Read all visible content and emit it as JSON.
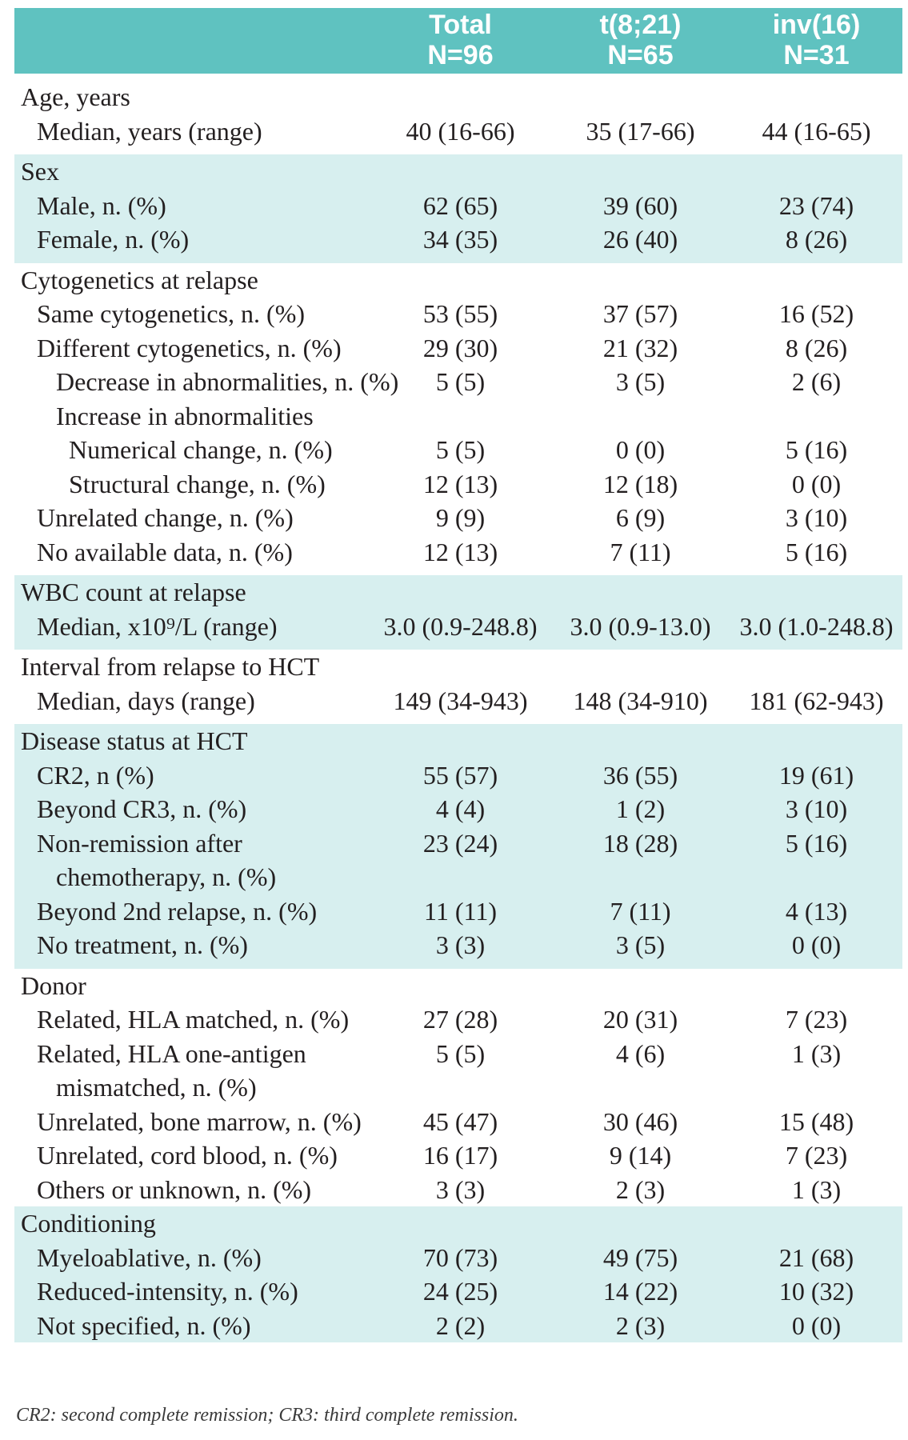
{
  "header": {
    "columns": [
      {
        "line1": "Total",
        "line2": "N=96"
      },
      {
        "line1": "t(8;21)",
        "line2": "N=65"
      },
      {
        "line1": "inv(16)",
        "line2": "N=31"
      }
    ]
  },
  "sections": [
    {
      "title": "Age, years",
      "rows": [
        {
          "label": "Median, years (range)",
          "total": "40  (16-66)",
          "t821": "35 (17-66)",
          "inv16": "44  (16-65)"
        }
      ]
    },
    {
      "title": "Sex",
      "rows": [
        {
          "label": "Male, n. (%)",
          "total": "62 (65)",
          "t821": "39 (60)",
          "inv16": "23 (74)"
        },
        {
          "label": "Female, n. (%)",
          "total": "34 (35)",
          "t821": "26 (40)",
          "inv16": "8 (26)"
        }
      ]
    },
    {
      "title": "Cytogenetics at relapse",
      "rows": [
        {
          "label": "Same cytogenetics, n. (%)",
          "total": "53 (55)",
          "t821": "37 (57)",
          "inv16": "16 (52)"
        },
        {
          "label": "Different cytogenetics, n. (%)",
          "total": "29 (30)",
          "t821": "21 (32)",
          "inv16": "8 (26)"
        },
        {
          "label": "Decrease in abnormalities, n. (%)",
          "total": "5 (5)",
          "t821": "3 (5)",
          "inv16": "2 (6)"
        },
        {
          "label": "Increase in abnormalities",
          "total": "",
          "t821": "",
          "inv16": ""
        },
        {
          "label": "Numerical change, n. (%)",
          "total": "5 (5)",
          "t821": "0 (0)",
          "inv16": "5 (16)"
        },
        {
          "label": "Structural change, n. (%)",
          "total": "12 (13)",
          "t821": "12 (18)",
          "inv16": "0 (0)"
        },
        {
          "label": "Unrelated change, n. (%)",
          "total": "9 (9)",
          "t821": "6 (9)",
          "inv16": "3 (10)"
        },
        {
          "label": "No available data, n. (%)",
          "total": "12 (13)",
          "t821": "7 (11)",
          "inv16": "5 (16)"
        }
      ]
    },
    {
      "title": "WBC count at relapse",
      "rows": [
        {
          "label": "Median, x10⁹/L (range)",
          "total": "3.0  (0.9-248.8)",
          "t821": "3.0  (0.9-13.0)",
          "inv16": "3.0 (1.0-248.8)"
        }
      ]
    },
    {
      "title": "Interval from relapse to HCT",
      "rows": [
        {
          "label": "Median, days (range)",
          "total": "149  (34-943)",
          "t821": "148  (34-910)",
          "inv16": "181  (62-943)"
        }
      ]
    },
    {
      "title": "Disease status at HCT",
      "rows": [
        {
          "label": "CR2, n (%)",
          "total": "55 (57)",
          "t821": "36 (55)",
          "inv16": "19 (61)"
        },
        {
          "label": "Beyond CR3, n. (%)",
          "total": "4 (4)",
          "t821": "1 (2)",
          "inv16": "3 (10)"
        },
        {
          "label": "Non-remission after",
          "total": "23 (24)",
          "t821": "18 (28)",
          "inv16": "5 (16)"
        },
        {
          "label": "chemotherapy, n. (%)",
          "total": "",
          "t821": "",
          "inv16": ""
        },
        {
          "label": "Beyond 2nd relapse, n. (%)",
          "total": "11 (11)",
          "t821": "7 (11)",
          "inv16": "4 (13)"
        },
        {
          "label": "No treatment, n. (%)",
          "total": "3 (3)",
          "t821": "3 (5)",
          "inv16": "0 (0)"
        }
      ]
    },
    {
      "title": "Donor",
      "rows": [
        {
          "label": "Related, HLA matched, n. (%)",
          "total": "27 (28)",
          "t821": "20 (31)",
          "inv16": "7 (23)"
        },
        {
          "label": "Related, HLA one-antigen",
          "total": "5 (5)",
          "t821": "4 (6)",
          "inv16": "1 (3)"
        },
        {
          "label": "mismatched, n. (%)",
          "total": "",
          "t821": "",
          "inv16": ""
        },
        {
          "label": "Unrelated, bone marrow, n. (%)",
          "total": "45 (47)",
          "t821": "30 (46)",
          "inv16": "15 (48)"
        },
        {
          "label": "Unrelated, cord blood, n. (%)",
          "total": "16 (17)",
          "t821": "9 (14)",
          "inv16": "7 (23)"
        },
        {
          "label": "Others or unknown, n. (%)",
          "total": "3 (3)",
          "t821": "2 (3)",
          "inv16": "1 (3)"
        }
      ]
    },
    {
      "title": "Conditioning",
      "rows": [
        {
          "label": "Myeloablative, n. (%)",
          "total": "70 (73)",
          "t821": "49 (75)",
          "inv16": "21 (68)"
        },
        {
          "label": "Reduced-intensity, n. (%)",
          "total": "24 (25)",
          "t821": "14 (22)",
          "inv16": "10 (32)"
        },
        {
          "label": "Not specified, n. (%)",
          "total": "2 (2)",
          "t821": "2 (3)",
          "inv16": "0 (0)"
        }
      ]
    }
  ],
  "footnote": "CR2: second complete remission; CR3: third complete remission.",
  "colors": {
    "header_bg": "#5fc2c0",
    "shade_bg": "#d7efef"
  }
}
